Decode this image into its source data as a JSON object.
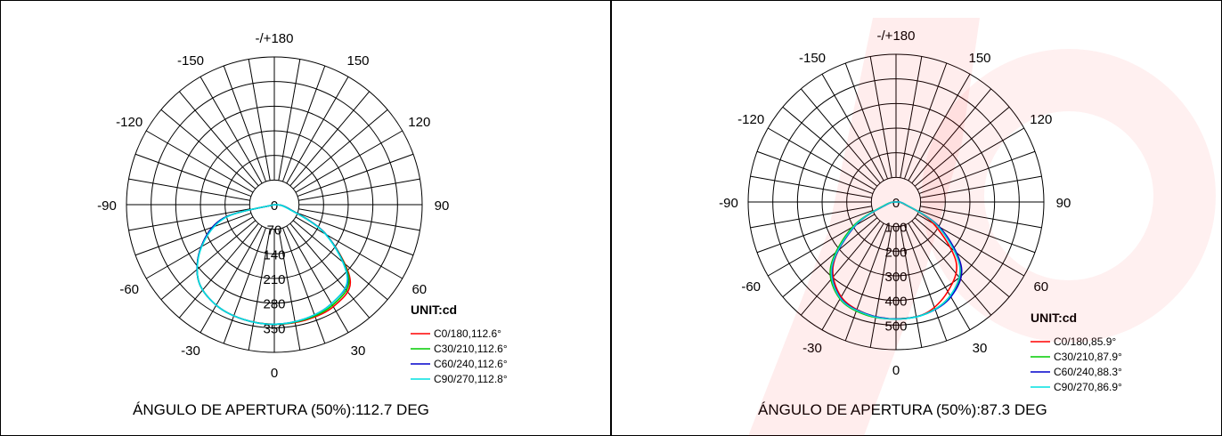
{
  "chart_data": [
    {
      "type": "polar",
      "angle_labels": [
        "-/+180",
        "150",
        "120",
        "90",
        "60",
        "30",
        "0",
        "-30",
        "-60",
        "-90",
        "-120",
        "-150"
      ],
      "radial_tick_labels": [
        "0",
        "70",
        "140",
        "210",
        "280",
        "350"
      ],
      "rlim": [
        0,
        350
      ],
      "unit_label": "UNIT:cd",
      "legend": [
        {
          "name": "C0/180,112.6°",
          "color": "#ff0000"
        },
        {
          "name": "C30/210,112.6°",
          "color": "#00cc00"
        },
        {
          "name": "C60/240,112.6°",
          "color": "#0000cc"
        },
        {
          "name": "C90/270,112.8°",
          "color": "#00e0e0"
        }
      ],
      "beam_text": "ÁNGULO DE APERTURA (50%):112.7 DEG",
      "curve_angles_deg": [
        -75,
        -60,
        -45,
        -30,
        -15,
        0,
        15,
        30,
        45,
        60,
        75
      ],
      "curves": [
        {
          "values": [
            150,
            240,
            305,
            330,
            338,
            340,
            340,
            335,
            305,
            170,
            40
          ]
        },
        {
          "values": [
            150,
            240,
            305,
            330,
            338,
            340,
            338,
            330,
            300,
            170,
            40
          ]
        },
        {
          "values": [
            150,
            240,
            305,
            330,
            338,
            340,
            336,
            325,
            295,
            170,
            40
          ]
        },
        {
          "values": [
            145,
            238,
            305,
            330,
            338,
            340,
            336,
            325,
            293,
            168,
            38
          ]
        }
      ]
    },
    {
      "type": "polar",
      "angle_labels": [
        "-/+180",
        "150",
        "120",
        "90",
        "60",
        "30",
        "0",
        "-30",
        "-60",
        "-90",
        "-120",
        "-150"
      ],
      "radial_tick_labels": [
        "0",
        "100",
        "200",
        "300",
        "400",
        "500"
      ],
      "rlim": [
        0,
        500
      ],
      "unit_label": "UNIT:cd",
      "legend": [
        {
          "name": "C0/180,85.9°",
          "color": "#ff0000"
        },
        {
          "name": "C30/210,87.9°",
          "color": "#00cc00"
        },
        {
          "name": "C60/240,88.3°",
          "color": "#0000cc"
        },
        {
          "name": "C90/270,86.9°",
          "color": "#00e0e0"
        }
      ],
      "beam_text": "ÁNGULO DE APERTURA (50%):87.3 DEG",
      "curve_angles_deg": [
        -75,
        -60,
        -45,
        -30,
        -15,
        0,
        15,
        30,
        45,
        60,
        75
      ],
      "curves": [
        {
          "values": [
            40,
            195,
            360,
            445,
            470,
            475,
            468,
            420,
            345,
            175,
            35
          ]
        },
        {
          "values": [
            45,
            205,
            375,
            455,
            475,
            475,
            470,
            440,
            370,
            200,
            40
          ]
        },
        {
          "values": [
            40,
            190,
            365,
            450,
            470,
            475,
            470,
            445,
            375,
            205,
            38
          ]
        },
        {
          "values": [
            42,
            195,
            368,
            452,
            472,
            476,
            470,
            440,
            365,
            195,
            38
          ]
        }
      ]
    }
  ]
}
